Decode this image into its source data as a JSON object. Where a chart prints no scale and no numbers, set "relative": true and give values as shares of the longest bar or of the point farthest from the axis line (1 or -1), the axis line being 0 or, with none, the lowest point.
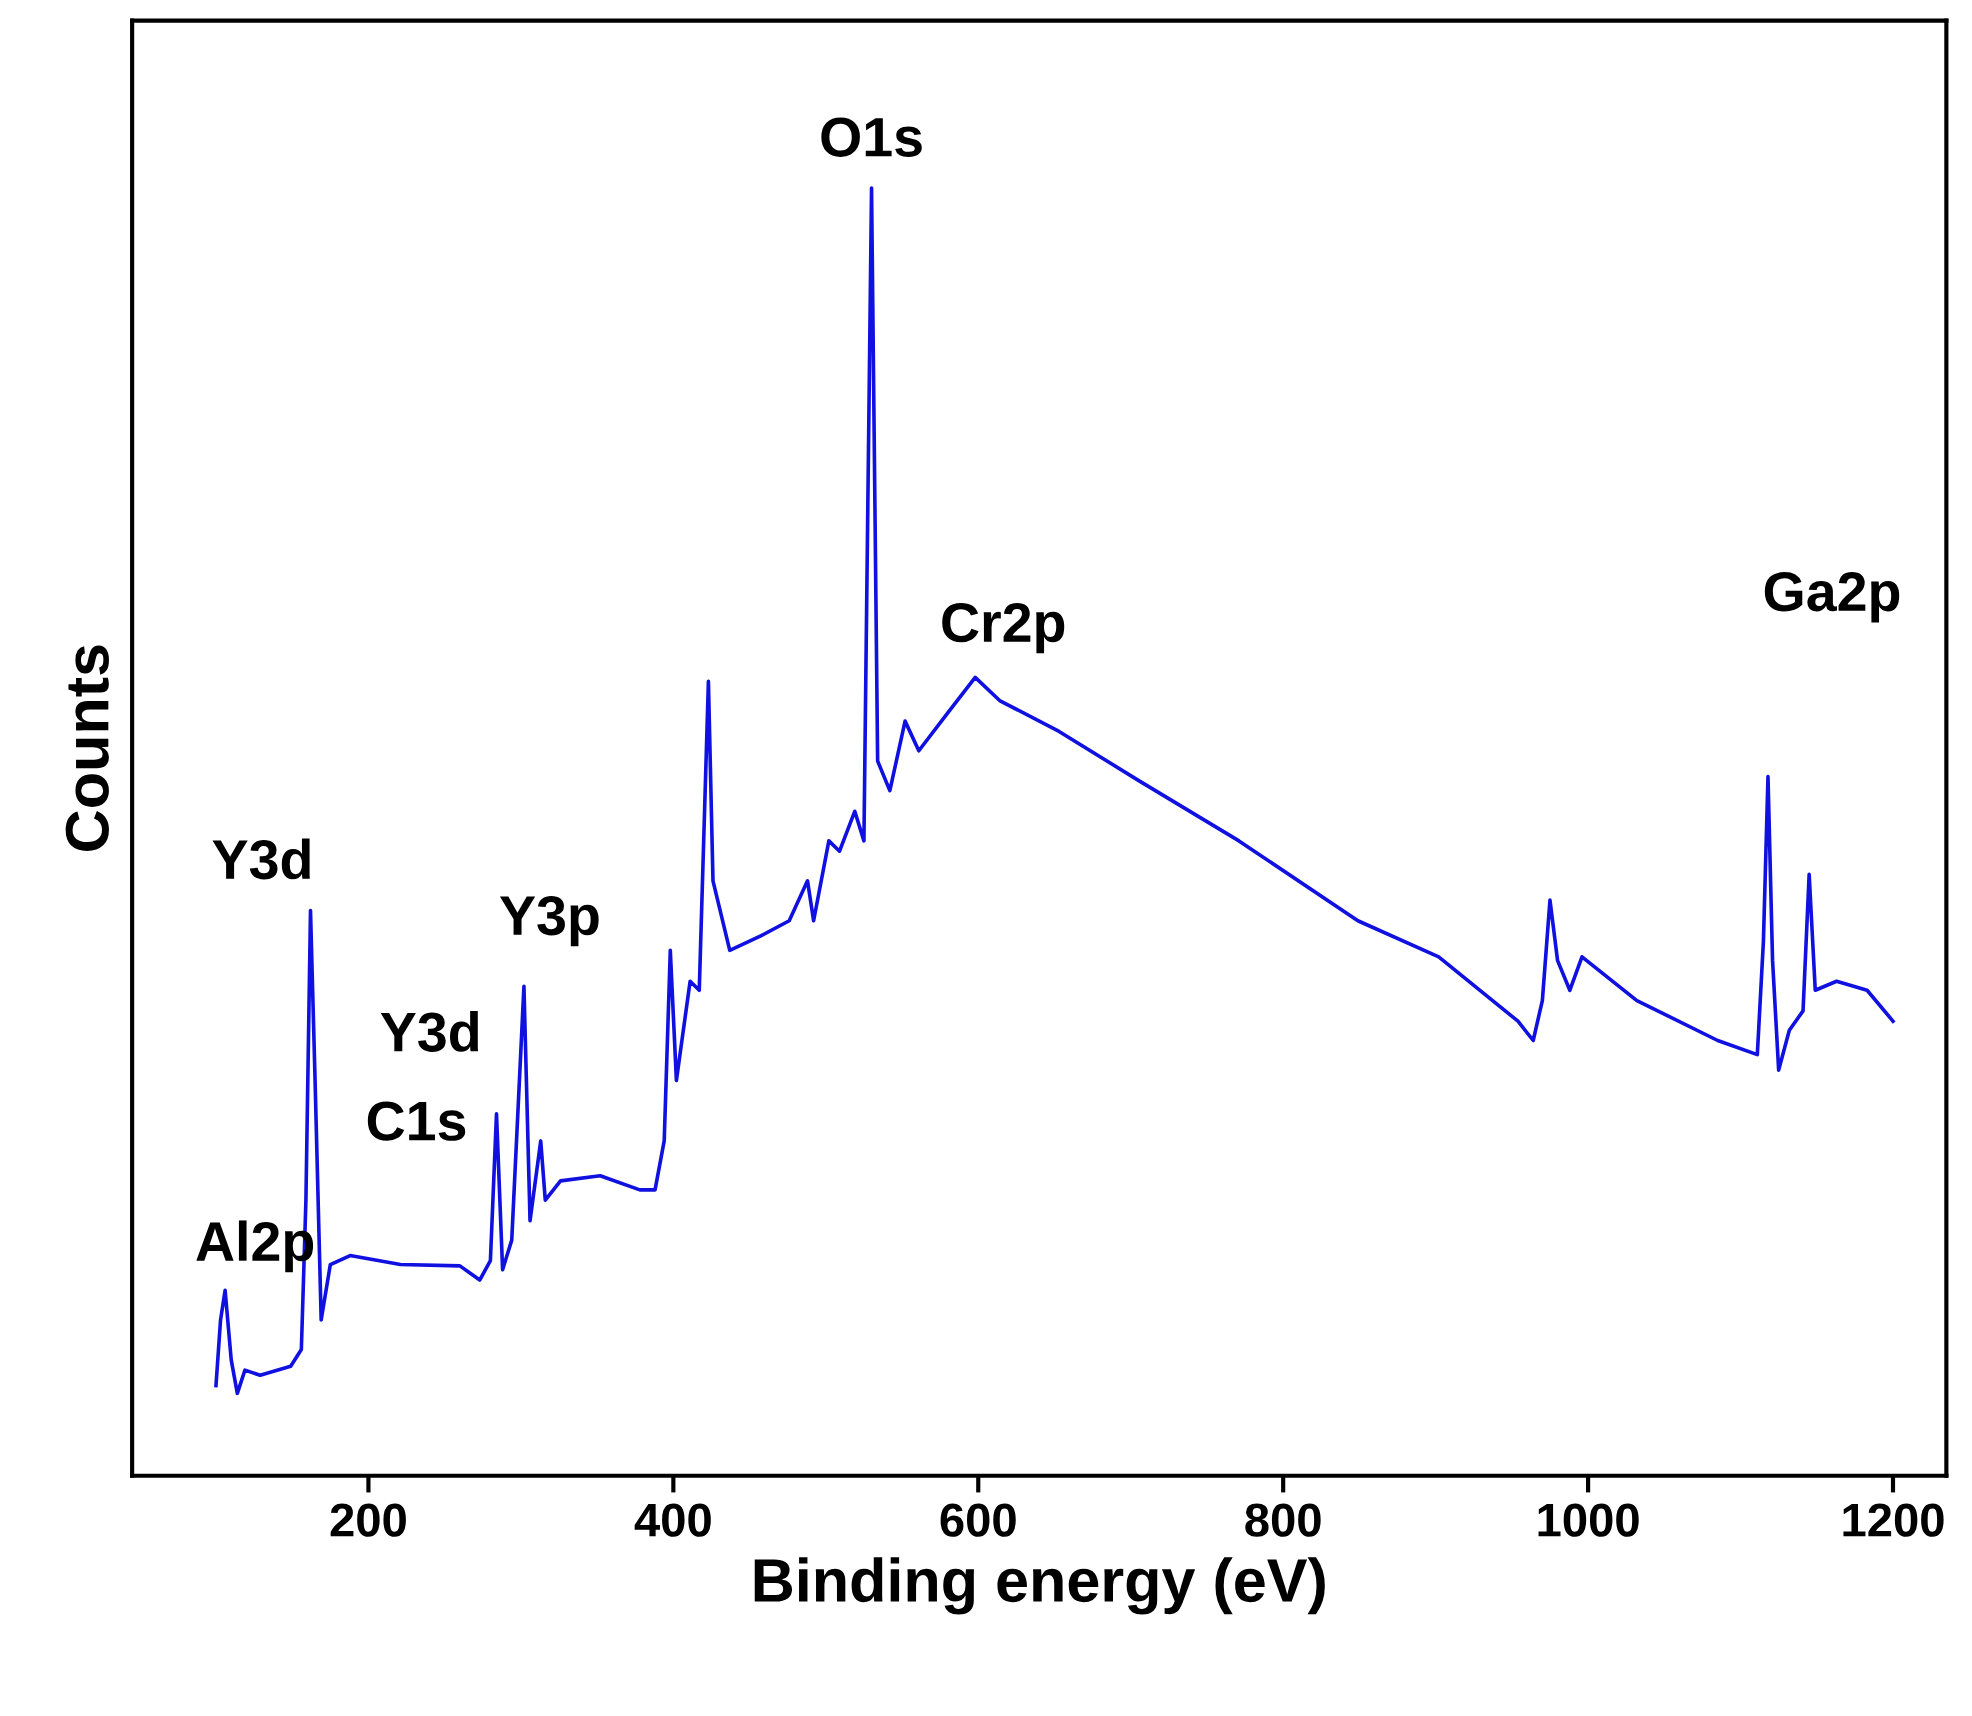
{
  "chart_data": {
    "type": "line",
    "relative": true,
    "xlabel": "Binding energy (eV)",
    "ylabel": "Counts",
    "xlim": [
      45,
      1235
    ],
    "xticks": [
      200,
      400,
      600,
      800,
      1000,
      1200
    ],
    "grid": false,
    "legend": false,
    "marker": "none",
    "line_style": "solid",
    "tick_labels": "x",
    "series": [
      {
        "color": "#1010e0",
        "x": [
          100,
          103,
          106,
          110,
          114,
          119,
          129,
          149,
          156,
          159,
          162,
          165,
          169,
          175,
          188,
          221,
          260,
          273,
          280,
          284,
          288,
          294,
          302,
          306,
          313,
          316,
          326,
          352,
          378,
          388,
          394,
          398,
          402,
          411,
          417,
          423,
          426,
          437,
          457,
          476,
          488,
          492,
          502,
          509,
          519,
          525,
          530,
          534,
          542,
          552,
          561,
          581,
          598,
          614,
          653,
          705,
          771,
          849,
          902,
          954,
          964,
          970,
          975,
          980,
          988,
          996,
          1032,
          1085,
          1111,
          1115,
          1118,
          1121,
          1125,
          1132,
          1141,
          1145,
          1149,
          1163,
          1183,
          1200
        ],
        "values": [
          0.07,
          0.121,
          0.144,
          0.09,
          0.064,
          0.082,
          0.078,
          0.085,
          0.098,
          0.214,
          0.439,
          0.307,
          0.121,
          0.164,
          0.171,
          0.164,
          0.163,
          0.152,
          0.167,
          0.281,
          0.16,
          0.183,
          0.38,
          0.198,
          0.26,
          0.214,
          0.229,
          0.233,
          0.222,
          0.222,
          0.26,
          0.408,
          0.307,
          0.384,
          0.377,
          0.617,
          0.462,
          0.408,
          0.419,
          0.431,
          0.462,
          0.431,
          0.493,
          0.485,
          0.516,
          0.493,
          1.0,
          0.555,
          0.532,
          0.586,
          0.563,
          0.594,
          0.62,
          0.602,
          0.578,
          0.54,
          0.493,
          0.431,
          0.403,
          0.353,
          0.338,
          0.369,
          0.447,
          0.4,
          0.377,
          0.403,
          0.369,
          0.338,
          0.327,
          0.415,
          0.543,
          0.4,
          0.315,
          0.346,
          0.361,
          0.467,
          0.377,
          0.384,
          0.377,
          0.353
        ]
      }
    ],
    "annotations": [
      {
        "text": "Al2p",
        "x": 106,
        "y": 0.144
      },
      {
        "text": "Y3d",
        "x": 162,
        "y": 0.439
      },
      {
        "text": "Y3d",
        "x": 313,
        "y": 0.26
      },
      {
        "text": "C1s",
        "x": 284,
        "y": 0.281
      },
      {
        "text": "Y3p",
        "x": 302,
        "y": 0.38
      },
      {
        "text": "O1s",
        "x": 530,
        "y": 1.0
      },
      {
        "text": "Cr2p",
        "x": 598,
        "y": 0.62
      },
      {
        "text": "Ga2p",
        "x": 1118,
        "y": 0.543
      }
    ]
  }
}
